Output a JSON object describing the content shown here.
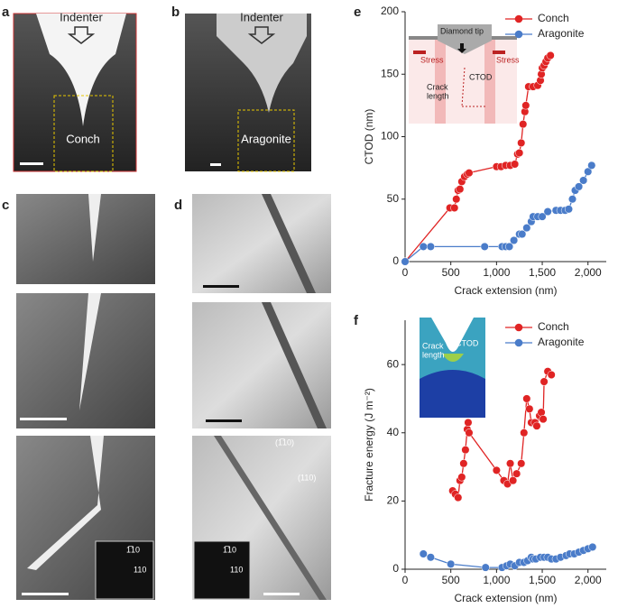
{
  "image_panels": [
    {
      "letter": "a",
      "texts": [
        "Indenter",
        "Conch"
      ]
    },
    {
      "letter": "b",
      "texts": [
        "Indenter",
        "Aragonite"
      ]
    },
    {
      "letter": "c",
      "texts": [
        "1̅10",
        "110"
      ]
    },
    {
      "letter": "d",
      "texts": [
        "(1̅10)",
        "(110)",
        "1̅10",
        "110"
      ]
    }
  ],
  "chart_data": [
    {
      "type": "line",
      "panel_label": "e",
      "xlabel": "Crack extension (nm)",
      "ylabel": "CTOD (nm)",
      "inset_labels": [
        "Diamond tip",
        "Stress",
        "Stress",
        "CTOD",
        "Crack",
        "length"
      ],
      "xlim": [
        0,
        2200
      ],
      "ylim": [
        0,
        200
      ],
      "xticks": [
        0,
        500,
        {
          "value": 1000,
          "label": "1,000"
        },
        {
          "value": 1500,
          "label": "1,500"
        },
        {
          "value": 2000,
          "label": "2,000"
        }
      ],
      "yticks": [
        0,
        50,
        100,
        150,
        200
      ],
      "legend": "upper right",
      "series": [
        {
          "name": "Conch",
          "color": "#e02424",
          "x": [
            0,
            490,
            540,
            560,
            580,
            600,
            620,
            650,
            680,
            700,
            1000,
            1050,
            1100,
            1150,
            1200,
            1230,
            1250,
            1270,
            1290,
            1310,
            1320,
            1350,
            1400,
            1450,
            1480,
            1490,
            1500,
            1520,
            1540,
            1560,
            1590
          ],
          "values": [
            0,
            43,
            43,
            50,
            57,
            58,
            64,
            68,
            70,
            71,
            76,
            76,
            77,
            77,
            78,
            86,
            87,
            95,
            110,
            120,
            125,
            140,
            140,
            141,
            145,
            150,
            155,
            157,
            160,
            163,
            165
          ]
        },
        {
          "name": "Aragonite",
          "color": "#4a7cc9",
          "x": [
            0,
            200,
            280,
            870,
            1060,
            1100,
            1140,
            1190,
            1250,
            1280,
            1330,
            1380,
            1400,
            1450,
            1500,
            1560,
            1650,
            1700,
            1750,
            1790,
            1830,
            1860,
            1900,
            1950,
            2000,
            2040
          ],
          "values": [
            0,
            12,
            12,
            12,
            12,
            12,
            12,
            17,
            22,
            22,
            27,
            32,
            36,
            36,
            36,
            40,
            41,
            41,
            41,
            42,
            50,
            57,
            60,
            65,
            72,
            77
          ]
        }
      ]
    },
    {
      "type": "line",
      "panel_label": "f",
      "xlabel": "Crack extension (nm)",
      "ylabel": "Fracture energy (J m⁻²)",
      "inset_labels": [
        "Crack",
        "length",
        "CTOD"
      ],
      "xlim": [
        0,
        2200
      ],
      "ylim": [
        0,
        73
      ],
      "xticks": [
        0,
        500,
        {
          "value": 1000,
          "label": "1,000"
        },
        {
          "value": 1500,
          "label": "1,500"
        },
        {
          "value": 2000,
          "label": "2,000"
        }
      ],
      "yticks": [
        0,
        20,
        40,
        60
      ],
      "legend": "upper right",
      "series": [
        {
          "name": "Conch",
          "color": "#e02424",
          "x": [
            520,
            550,
            580,
            600,
            620,
            640,
            660,
            680,
            690,
            700,
            1000,
            1080,
            1120,
            1150,
            1180,
            1220,
            1270,
            1300,
            1330,
            1360,
            1380,
            1420,
            1440,
            1470,
            1490,
            1510,
            1520,
            1560,
            1600
          ],
          "values": [
            23,
            22,
            21,
            26,
            27,
            31,
            35,
            41,
            43,
            40,
            29,
            26,
            25,
            31,
            26,
            28,
            31,
            40,
            50,
            47,
            43,
            43,
            42,
            45,
            46,
            44,
            55,
            58,
            57
          ]
        },
        {
          "name": "Aragonite",
          "color": "#4a7cc9",
          "x": [
            200,
            280,
            500,
            880,
            1060,
            1110,
            1150,
            1200,
            1250,
            1300,
            1340,
            1380,
            1400,
            1430,
            1480,
            1520,
            1560,
            1600,
            1650,
            1700,
            1760,
            1800,
            1850,
            1900,
            1950,
            2000,
            2050
          ],
          "values": [
            4.5,
            3.5,
            1.5,
            0.5,
            0.5,
            1,
            1.5,
            1,
            2,
            2,
            2.5,
            3.5,
            3,
            3,
            3.5,
            3.5,
            3.5,
            3,
            3,
            3.5,
            4,
            4.5,
            4.5,
            5,
            5.5,
            6,
            6.5
          ]
        }
      ]
    }
  ]
}
